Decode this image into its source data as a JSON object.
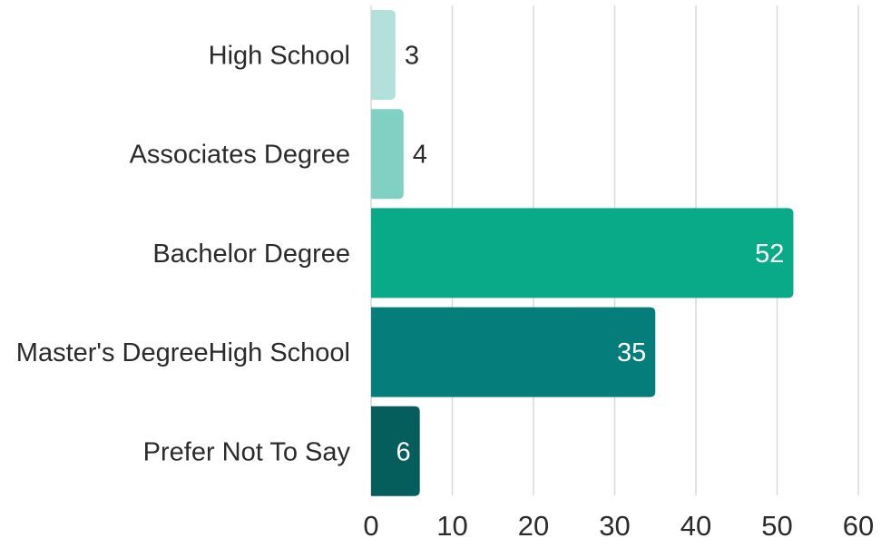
{
  "chart_data": {
    "type": "bar",
    "orientation": "horizontal",
    "categories": [
      "High School",
      "Associates Degree",
      "Bachelor Degree",
      "Master's DegreeHigh School",
      "Prefer Not To Say"
    ],
    "values": [
      3,
      4,
      52,
      35,
      6
    ],
    "bar_colors": [
      "#b3e0da",
      "#80d0c4",
      "#08aa88",
      "#047d7b",
      "#055e5b"
    ],
    "label_colors": [
      "#2b2b2b",
      "#2b2b2b",
      "#ffffff",
      "#ffffff",
      "#ffffff"
    ],
    "label_inside": [
      false,
      false,
      true,
      true,
      true
    ],
    "xlim": [
      0,
      60
    ],
    "xticks": [
      0,
      10,
      20,
      30,
      40,
      50,
      60
    ],
    "grid": true,
    "title": "",
    "xlabel": "",
    "ylabel": ""
  }
}
